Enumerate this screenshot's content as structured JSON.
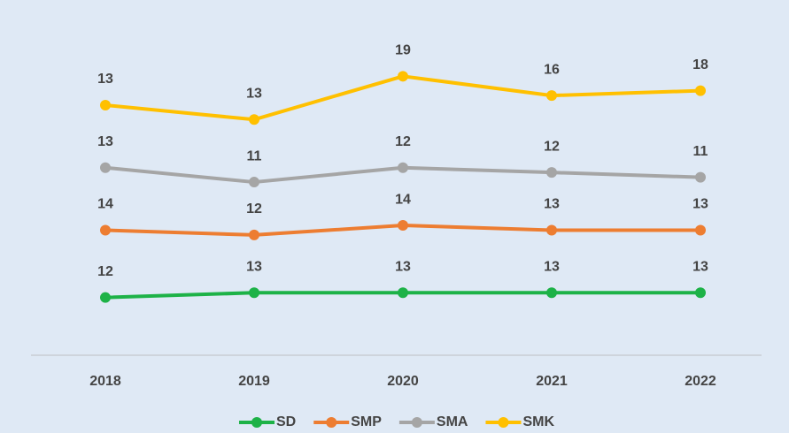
{
  "chart_data": {
    "type": "line",
    "stacked": true,
    "categories": [
      "2018",
      "2019",
      "2020",
      "2021",
      "2022"
    ],
    "series": [
      {
        "name": "SD",
        "color": "#1db247",
        "values": [
          12,
          13,
          13,
          13,
          13
        ]
      },
      {
        "name": "SMP",
        "color": "#ed7d31",
        "values": [
          14,
          12,
          14,
          13,
          13
        ]
      },
      {
        "name": "SMA",
        "color": "#a5a5a5",
        "values": [
          13,
          11,
          12,
          12,
          11
        ]
      },
      {
        "name": "SMK",
        "color": "#ffc000",
        "values": [
          13,
          13,
          19,
          16,
          18
        ]
      }
    ],
    "ylim": [
      0,
      70
    ]
  }
}
